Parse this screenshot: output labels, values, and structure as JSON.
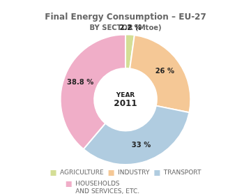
{
  "chart_data": {
    "type": "doughnut",
    "title": "Final Energy Consumption – EU-27",
    "subtitle": "BY SECTOR (Mtoe)",
    "categories": [
      "AGRICULTURE",
      "INDUSTRY",
      "TRANSPORT",
      "HOUSEHOLDS\nAND SERVICES, ETC."
    ],
    "values": [
      2.2,
      26,
      33,
      38.8
    ],
    "value_labels": [
      "2.2 %",
      "26 %",
      "33 %",
      "38.8 %"
    ],
    "colors": [
      "#d4de96",
      "#f5c896",
      "#b0cce0",
      "#f0aec8"
    ],
    "data_labels": true,
    "legend": "bottom",
    "annotations": [
      "YEAR",
      "2011"
    ]
  }
}
